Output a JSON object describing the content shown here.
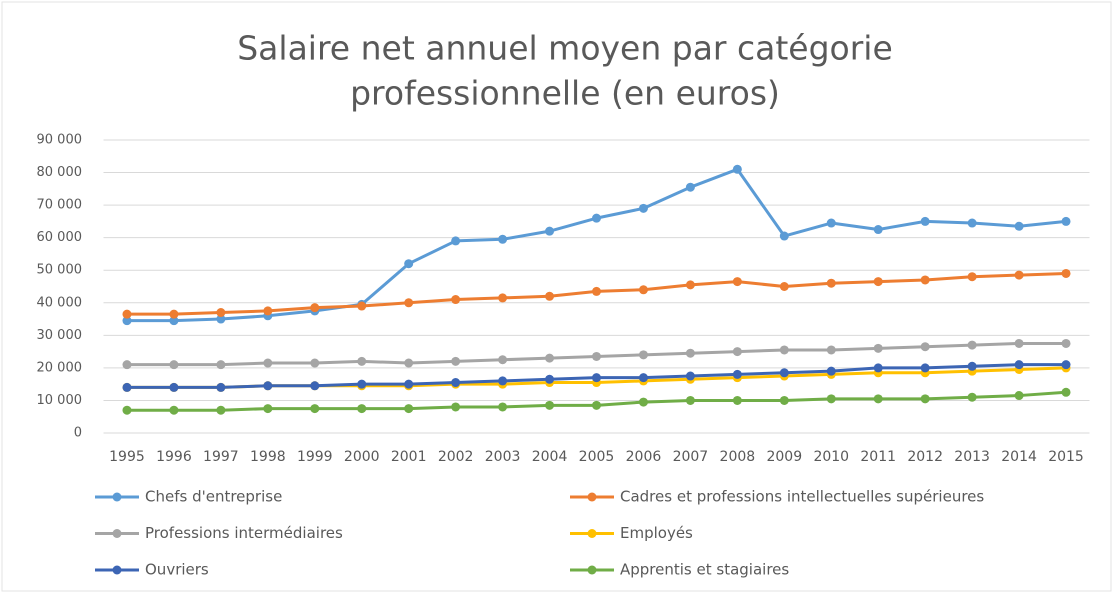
{
  "chart_data": {
    "type": "line",
    "title": [
      "Salaire net annuel moyen par catégorie",
      "professionnelle (en euros)"
    ],
    "categories": [
      "1995",
      "1996",
      "1997",
      "1998",
      "1999",
      "2000",
      "2001",
      "2002",
      "2003",
      "2004",
      "2005",
      "2006",
      "2007",
      "2008",
      "2009",
      "2010",
      "2011",
      "2012",
      "2013",
      "2014",
      "2015"
    ],
    "series": [
      {
        "name": "Chefs d'entreprise",
        "color": "#5b9bd5",
        "values": [
          34500,
          34500,
          35000,
          36000,
          37500,
          39500,
          52000,
          59000,
          59500,
          62000,
          66000,
          69000,
          75500,
          81000,
          60500,
          64500,
          62500,
          65000,
          64500,
          63500,
          65000
        ]
      },
      {
        "name": "Cadres et professions intellectuelles supérieures",
        "color": "#ed7d31",
        "values": [
          36500,
          36500,
          37000,
          37500,
          38500,
          39000,
          40000,
          41000,
          41500,
          42000,
          43500,
          44000,
          45500,
          46500,
          45000,
          46000,
          46500,
          47000,
          48000,
          48500,
          49000
        ]
      },
      {
        "name": "Professions intermédiaires",
        "color": "#a5a5a5",
        "values": [
          21000,
          21000,
          21000,
          21500,
          21500,
          22000,
          21500,
          22000,
          22500,
          23000,
          23500,
          24000,
          24500,
          25000,
          25500,
          25500,
          26000,
          26500,
          27000,
          27500,
          27500
        ]
      },
      {
        "name": "Employés",
        "color": "#ffc000",
        "values": [
          14000,
          14000,
          14000,
          14500,
          14500,
          14500,
          14500,
          15000,
          15000,
          15500,
          15500,
          16000,
          16500,
          17000,
          17500,
          18000,
          18500,
          18500,
          19000,
          19500,
          20000
        ]
      },
      {
        "name": "Ouvriers",
        "color": "#3c65b4",
        "values": [
          14000,
          14000,
          14000,
          14500,
          14500,
          15000,
          15000,
          15500,
          16000,
          16500,
          17000,
          17000,
          17500,
          18000,
          18500,
          19000,
          20000,
          20000,
          20500,
          21000,
          21000
        ]
      },
      {
        "name": "Apprentis et stagiaires",
        "color": "#70ad47",
        "values": [
          7000,
          7000,
          7000,
          7500,
          7500,
          7500,
          7500,
          8000,
          8000,
          8500,
          8500,
          9500,
          10000,
          10000,
          10000,
          10500,
          10500,
          10500,
          11000,
          11500,
          12500
        ]
      }
    ],
    "ylim": [
      0,
      90000
    ],
    "yticks": [
      0,
      {
        "value": 10000,
        "label": "10 000"
      },
      {
        "value": 20000,
        "label": "20 000"
      },
      {
        "value": 30000,
        "label": "30 000"
      },
      {
        "value": 40000,
        "label": "40 000"
      },
      {
        "value": 50000,
        "label": "50 000"
      },
      {
        "value": 60000,
        "label": "60 000"
      },
      {
        "value": 70000,
        "label": "70 000"
      },
      {
        "value": 80000,
        "label": "80 000"
      },
      {
        "value": 90000,
        "label": "90 000"
      }
    ],
    "grid": true,
    "legend": "bottom"
  }
}
